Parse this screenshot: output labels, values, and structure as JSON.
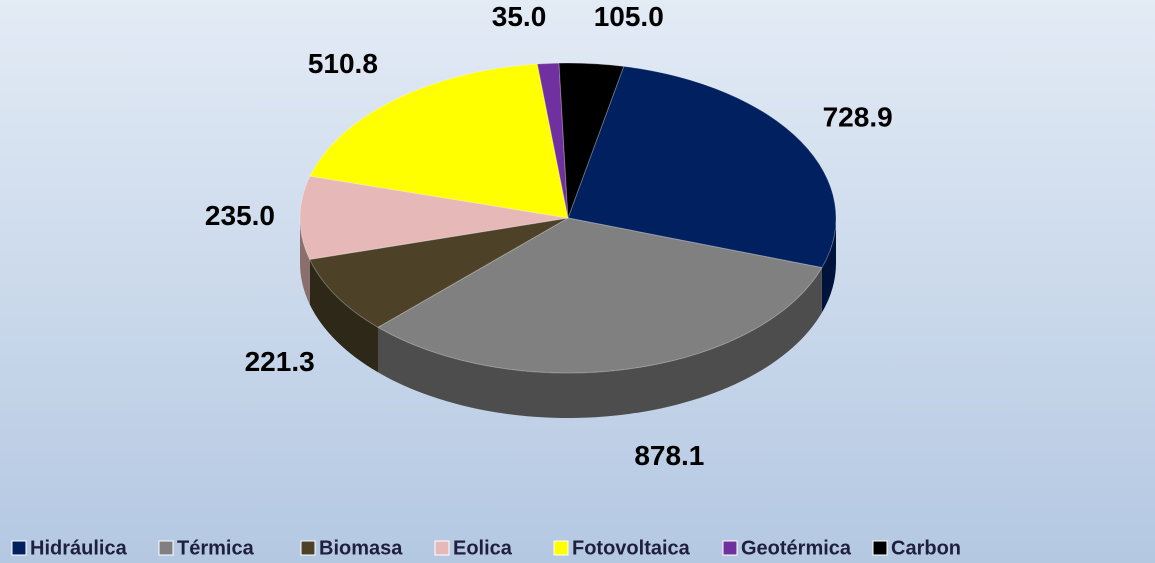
{
  "chart_data": {
    "type": "pie",
    "categories": [
      "Hidráulica",
      "Térmica",
      "Biomasa",
      "Eolica",
      "Fotovoltaica",
      "Geotérmica",
      "Carbon"
    ],
    "values": [
      728.9,
      878.1,
      221.3,
      235.0,
      510.8,
      35.0,
      105.0
    ],
    "value_labels": [
      "728.9",
      "878.1",
      "221.3",
      "235.0",
      "510.8",
      "35.0",
      "105.0"
    ],
    "colors": [
      "#002060",
      "#808080",
      "#4d4228",
      "#e6b9b8",
      "#ffff00",
      "#7030a0",
      "#000000"
    ],
    "legend": "bottom"
  }
}
